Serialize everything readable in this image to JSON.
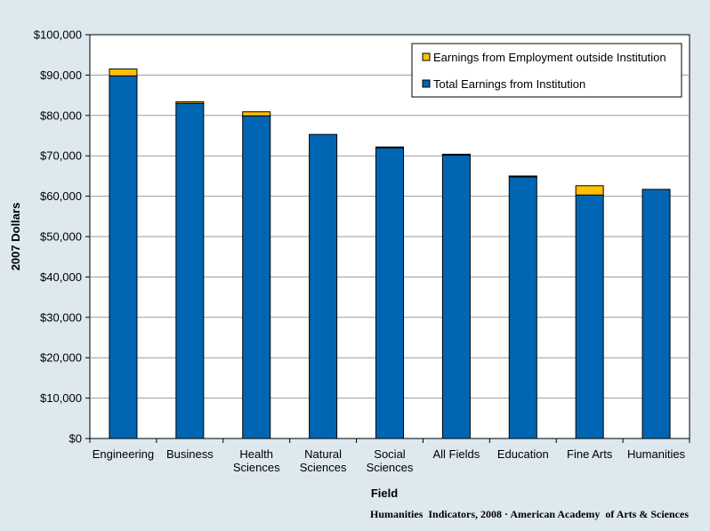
{
  "chart_data": {
    "type": "bar",
    "stacked": true,
    "categories": [
      [
        "Engineering"
      ],
      [
        "Business"
      ],
      [
        "Health",
        "Sciences"
      ],
      [
        "Natural",
        "Sciences"
      ],
      [
        "Social",
        "Sciences"
      ],
      [
        "All Fields"
      ],
      [
        "Education"
      ],
      [
        "Fine Arts"
      ],
      [
        "Humanities"
      ]
    ],
    "series": [
      {
        "name": "Total Earnings from Institution",
        "color": "#0066b3",
        "values": [
          89800,
          83000,
          79900,
          75300,
          72000,
          70200,
          64800,
          60300,
          61700
        ]
      },
      {
        "name": "Earnings from Employment outside Institution",
        "color": "#ffc000",
        "values": [
          1700,
          400,
          1000,
          0,
          200,
          200,
          200,
          2300,
          0
        ]
      }
    ],
    "legend_order": [
      1,
      0
    ],
    "legend_position": "top-right",
    "xlabel": "Field",
    "ylabel": "2007 Dollars",
    "ylim": [
      0,
      100000
    ],
    "ytick_step": 10000,
    "ytick_labels": [
      "$0",
      "$10,000",
      "$20,000",
      "$30,000",
      "$40,000",
      "$50,000",
      "$60,000",
      "$70,000",
      "$80,000",
      "$90,000",
      "$100,000"
    ],
    "grid": true,
    "footer": "Humanities  Indicators, 2008 · American Academy  of Arts & Sciences"
  }
}
